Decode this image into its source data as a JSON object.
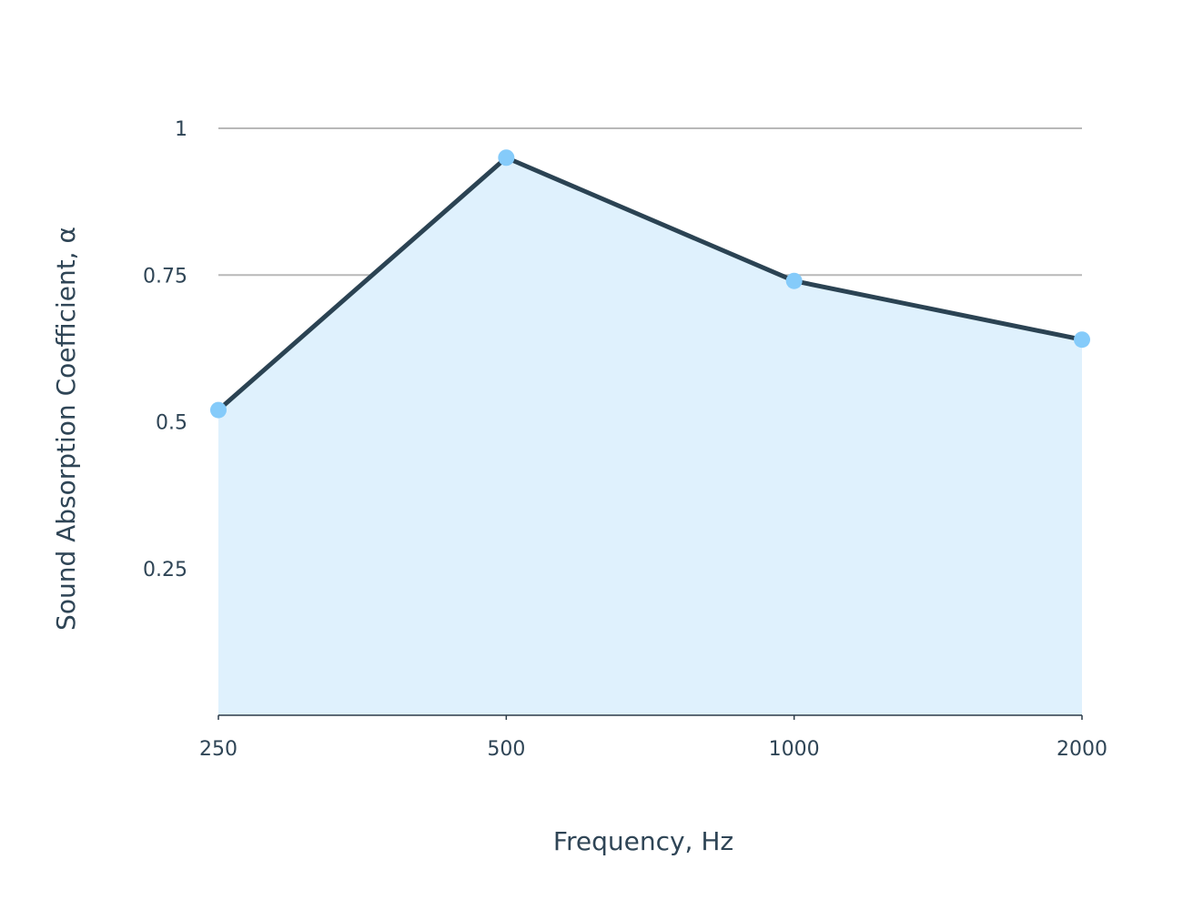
{
  "chart_data": {
    "type": "area",
    "title": "",
    "xlabel": "Frequency, Hz",
    "ylabel": "Sound Absorption Coefficient, α",
    "categories": [
      "250",
      "500",
      "1000",
      "2000"
    ],
    "series": [
      {
        "values": [
          0.52,
          0.95,
          0.74,
          0.64
        ]
      }
    ],
    "y_ticks": [
      {
        "value": 0.25,
        "label": "0.25"
      },
      {
        "value": 0.5,
        "label": "0.5"
      },
      {
        "value": 0.75,
        "label": "0.75"
      },
      {
        "value": 1,
        "label": "1"
      }
    ],
    "ylim": [
      0,
      1
    ],
    "grid": true,
    "legend": "none",
    "colors": {
      "line": "#2b4353",
      "fill": "#dff1fd",
      "marker": "#85cbfa",
      "grid": "#b8b8b8",
      "axis": "#2b3b48",
      "text": "#2f4556"
    }
  }
}
